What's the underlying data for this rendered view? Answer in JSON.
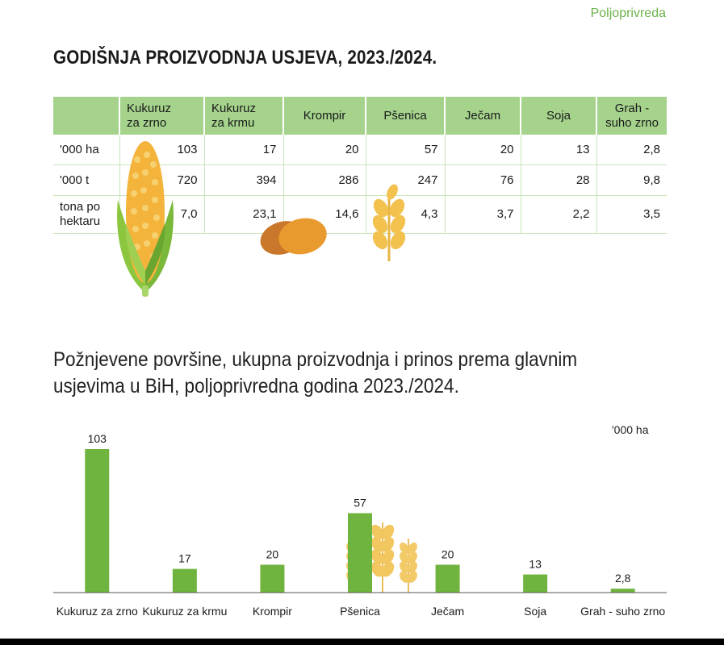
{
  "section_tag": "Poljoprivreda",
  "main_title": "GODIŠNJA PROIZVODNJA USJEVA, 2023./2024.",
  "table": {
    "headers": [
      "",
      "Kukuruz\nza zrno",
      "Kukuruz\nza krmu",
      "Krompir",
      "Pšenica",
      "Ječam",
      "Soja",
      "Grah -\nsuho zrno"
    ],
    "rows": [
      [
        "'000 ha",
        "103",
        "17",
        "20",
        "57",
        "20",
        "13",
        "2,8"
      ],
      [
        "'000 t",
        "720",
        "394",
        "286",
        "247",
        "76",
        "28",
        "9,8"
      ],
      [
        "tona po\nhektaru",
        "7,0",
        "23,1",
        "14,6",
        "4,3",
        "3,7",
        "2,2",
        "3,5"
      ]
    ]
  },
  "icons": [
    "corn-icon",
    "potato-icon",
    "wheat-icon"
  ],
  "subtitle": "Požnjevene površine, ukupna proizvodnja i prinos prema glavnim usjevima u BiH, poljoprivredna godina 2023./2024.",
  "colors": {
    "bar": "#6fb43f",
    "header": "#a5d38c",
    "accent": "#6cb24a",
    "wheat": "#f2c14e"
  },
  "chart_data": {
    "type": "bar",
    "title": "",
    "unit_label": "'000 ha",
    "categories": [
      "Kukuruz za zrno",
      "Kukuruz za krmu",
      "Krompir",
      "Pšenica",
      "Ječam",
      "Soja",
      "Grah - suho zrno"
    ],
    "values": [
      103,
      17,
      20,
      57,
      20,
      13,
      2.8
    ],
    "value_labels": [
      "103",
      "17",
      "20",
      "57",
      "20",
      "13",
      "2,8"
    ],
    "ylim": [
      0,
      103
    ],
    "grid": false,
    "legend": "none"
  }
}
